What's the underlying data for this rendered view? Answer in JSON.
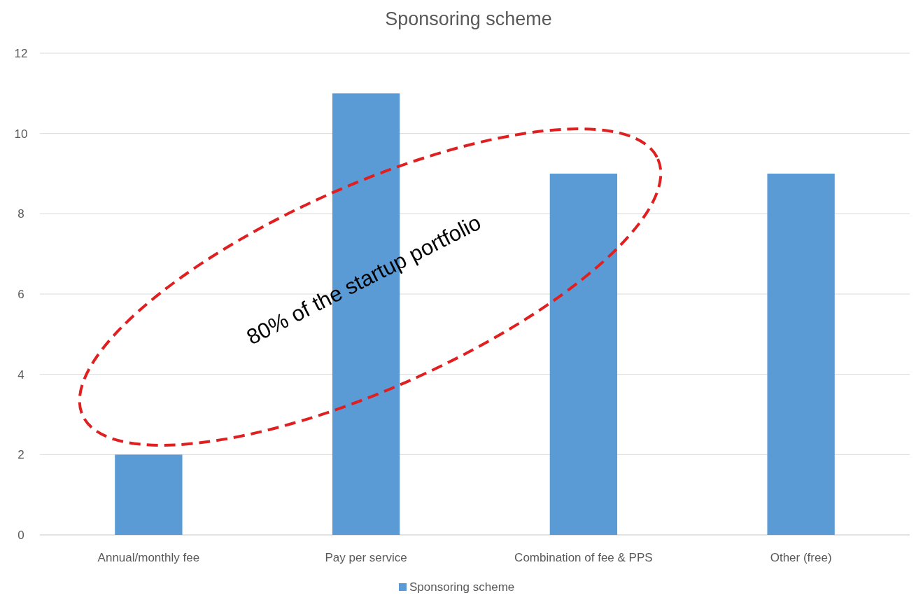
{
  "chart_data": {
    "type": "bar",
    "title": "Sponsoring scheme",
    "categories": [
      "Annual/monthly fee",
      "Pay per service",
      "Combination of fee & PPS",
      "Other (free)"
    ],
    "series": [
      {
        "name": "Sponsoring scheme",
        "color": "#5b9bd5",
        "values": [
          2,
          11,
          9,
          9
        ]
      }
    ],
    "ylim": [
      0,
      12
    ],
    "yticks": [
      0,
      2,
      4,
      6,
      8,
      10,
      12
    ],
    "grid": "y",
    "legend": "bottom",
    "annotations": [
      "80% of the startup portfolio"
    ]
  }
}
